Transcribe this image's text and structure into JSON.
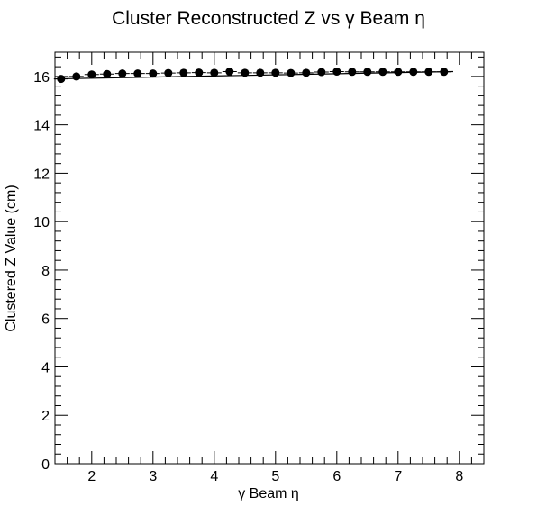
{
  "chart_data": {
    "type": "scatter",
    "title": "Cluster Reconstructed Z vs γ Beam η",
    "xlabel": "γ Beam  η",
    "ylabel": "Clustered Z Value (cm)",
    "xlim": [
      1.4,
      8.4
    ],
    "ylim": [
      0,
      17
    ],
    "x_ticks": [
      "2",
      "3",
      "4",
      "5",
      "6",
      "7",
      "8"
    ],
    "y_ticks": [
      "0",
      "2",
      "4",
      "6",
      "8",
      "10",
      "12",
      "14",
      "16"
    ],
    "grid": false,
    "legend": "none",
    "fit_line": {
      "x": [
        1.4,
        7.9
      ],
      "y": [
        15.9,
        16.2
      ]
    },
    "series": [
      {
        "x": [
          1.5,
          1.75,
          2.0,
          2.25,
          2.5,
          2.75,
          3.0,
          3.25,
          3.5,
          3.75,
          4.0,
          4.25,
          4.5,
          4.75,
          5.0,
          5.25,
          5.5,
          5.75,
          6.0,
          6.25,
          6.5,
          6.75,
          7.0,
          7.25,
          7.5,
          7.75
        ],
        "y": [
          15.9,
          16.0,
          16.08,
          16.1,
          16.12,
          16.12,
          16.12,
          16.14,
          16.15,
          16.16,
          16.15,
          16.2,
          16.15,
          16.15,
          16.15,
          16.14,
          16.15,
          16.18,
          16.2,
          16.19,
          16.19,
          16.19,
          16.19,
          16.19,
          16.19,
          16.19
        ]
      }
    ]
  }
}
